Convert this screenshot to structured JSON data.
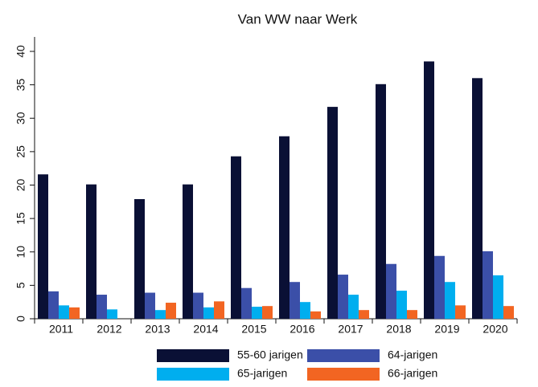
{
  "chart_data": {
    "type": "bar",
    "title": "Van WW naar Werk",
    "categories": [
      "2011",
      "2012",
      "2013",
      "2014",
      "2015",
      "2016",
      "2017",
      "2018",
      "2019",
      "2020"
    ],
    "series": [
      {
        "name": "55-60 jarigen",
        "color": "#0a1035",
        "values": [
          21.6,
          20.1,
          17.9,
          20.1,
          24.3,
          27.3,
          31.7,
          35.1,
          38.5,
          36.0
        ]
      },
      {
        "name": "64-jarigen",
        "color": "#3b4fa8",
        "values": [
          4.1,
          3.6,
          3.9,
          3.9,
          4.6,
          5.5,
          6.6,
          8.2,
          9.4,
          10.1
        ]
      },
      {
        "name": "65-jarigen",
        "color": "#00aeef",
        "values": [
          2.0,
          1.4,
          1.3,
          1.7,
          1.8,
          2.5,
          3.6,
          4.2,
          5.5,
          6.5
        ]
      },
      {
        "name": "66-jarigen",
        "color": "#f26522",
        "values": [
          1.7,
          null,
          2.4,
          2.6,
          1.9,
          1.1,
          1.3,
          1.3,
          2.0,
          1.9
        ]
      }
    ],
    "ylim": [
      0,
      40
    ],
    "yticks": [
      0,
      5,
      10,
      15,
      20,
      25,
      30,
      35,
      40
    ],
    "grid": false
  }
}
